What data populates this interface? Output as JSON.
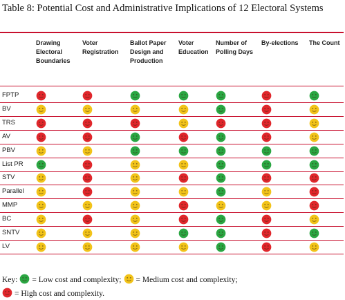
{
  "title": "Table 8: Potential Cost and Administrative Implications of 12 Electoral Systems",
  "columns": [
    "Drawing Electoral Boundaries",
    "Voter Registration",
    "Ballot Paper Design and Production",
    "Voter Education",
    "Number of Polling Days",
    "By-elections",
    "The Count"
  ],
  "colors": {
    "green": "#2aa642",
    "yellow": "#f2c319",
    "red": "#e0262b",
    "rule": "#c8102e"
  },
  "rows": [
    {
      "system": "FPTP",
      "ratings": [
        "red",
        "red",
        "green",
        "green",
        "green",
        "red",
        "green"
      ]
    },
    {
      "system": "BV",
      "ratings": [
        "yellow",
        "yellow",
        "yellow",
        "yellow",
        "green",
        "red",
        "yellow"
      ]
    },
    {
      "system": "TRS",
      "ratings": [
        "red",
        "red",
        "red",
        "yellow",
        "red",
        "red",
        "yellow"
      ]
    },
    {
      "system": "AV",
      "ratings": [
        "red",
        "red",
        "green",
        "red",
        "green",
        "red",
        "yellow"
      ]
    },
    {
      "system": "PBV",
      "ratings": [
        "yellow",
        "yellow",
        "green",
        "green",
        "green",
        "green",
        "green"
      ]
    },
    {
      "system": "List PR",
      "ratings": [
        "green",
        "red",
        "yellow",
        "yellow",
        "green",
        "green",
        "green"
      ]
    },
    {
      "system": "STV",
      "ratings": [
        "yellow",
        "red",
        "yellow",
        "red",
        "green",
        "red",
        "red"
      ]
    },
    {
      "system": "Parallel",
      "ratings": [
        "yellow",
        "red",
        "yellow",
        "yellow",
        "green",
        "yellow",
        "red"
      ]
    },
    {
      "system": "MMP",
      "ratings": [
        "yellow",
        "yellow",
        "yellow",
        "red",
        "yellow",
        "yellow",
        "red"
      ]
    },
    {
      "system": "BC",
      "ratings": [
        "yellow",
        "red",
        "yellow",
        "red",
        "green",
        "red",
        "yellow"
      ]
    },
    {
      "system": "SNTV",
      "ratings": [
        "yellow",
        "yellow",
        "yellow",
        "green",
        "green",
        "red",
        "green"
      ]
    },
    {
      "system": "LV",
      "ratings": [
        "yellow",
        "yellow",
        "yellow",
        "yellow",
        "green",
        "red",
        "yellow"
      ]
    }
  ],
  "key": {
    "prefix": "Key:",
    "low": "= Low cost and complexity;",
    "medium": "= Medium cost and complexity;",
    "high": "= High cost and complexity."
  }
}
